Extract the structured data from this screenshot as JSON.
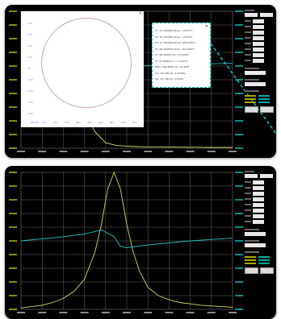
{
  "window_1": {
    "label": "Smith chart view with marker table",
    "marker_table": {
      "close_icon": "close-icon",
      "rows": [
        "F1: 97.100MHz   Zmin: 1.0077%",
        "F2: 97.200MHz   Zmin: 1.0079%",
        "F3: 97.300MHz   Rmax: 800.0Ohm",
        "F4: 99.100MHz   Rmin: 402.0Ohm",
        "Fo: 98.10MHz    Q1: 1.011kHz",
        "Fs: 97.60MHz    L1: 1.131mH",
        "BW3: 992.9MHz   C1: 16.40fF",
        "Qe: 107.8fs     C0: 1.0049fs",
        "Qp: 29.7dB      C2: 2.874fs"
      ]
    },
    "smith": {
      "close_icon": "close-icon",
      "y_ticks": [
        "0.8%",
        "0.6%",
        "0.4%",
        "0.2%",
        "0%",
        "-0.2%",
        "-0.4%",
        "-0.6%",
        "-0.8%"
      ],
      "x_ticks": [
        "98.9kHz",
        "97.4",
        "97.6",
        "97.8",
        "98.0",
        "98.2",
        "98.4",
        "98.6",
        "98.8",
        "99.0"
      ]
    }
  },
  "window_2": {
    "label": "Impedance magnitude and phase sweep"
  },
  "chart_data": [
    {
      "type": "line",
      "series": [
        {
          "color": "#d8d860",
          "x": [
            0,
            0.05,
            0.1,
            0.15,
            0.2,
            0.25,
            0.3,
            0.35,
            0.4,
            0.45,
            0.5,
            0.55,
            0.6,
            0.65,
            0.7,
            0.75,
            0.8,
            0.85,
            0.9,
            0.95,
            1.0
          ],
          "values": [
            0.98,
            0.9,
            0.82,
            0.72,
            0.6,
            0.45,
            0.28,
            0.12,
            0.04,
            0.02,
            0.015,
            0.012,
            0.01,
            0.01,
            0.008,
            0.008,
            0.007,
            0.007,
            0.006,
            0.006,
            0.006
          ]
        },
        {
          "color": "#24c0c0",
          "x": [
            0,
            1
          ],
          "values": [
            0.58,
            0.62
          ]
        }
      ]
    },
    {
      "type": "line",
      "series": [
        {
          "color": "#d8d860",
          "x": [
            0,
            0.05,
            0.1,
            0.15,
            0.2,
            0.25,
            0.3,
            0.35,
            0.38,
            0.41,
            0.44,
            0.47,
            0.5,
            0.53,
            0.56,
            0.6,
            0.65,
            0.7,
            0.75,
            0.8,
            0.85,
            0.9,
            0.95,
            1.0
          ],
          "values": [
            0.01,
            0.02,
            0.03,
            0.05,
            0.08,
            0.13,
            0.22,
            0.42,
            0.62,
            0.88,
            1.0,
            0.88,
            0.62,
            0.42,
            0.28,
            0.16,
            0.1,
            0.07,
            0.05,
            0.04,
            0.03,
            0.025,
            0.02,
            0.015
          ]
        },
        {
          "color": "#24c0c0",
          "x": [
            0,
            0.2,
            0.3,
            0.38,
            0.44,
            0.47,
            0.5,
            0.6,
            0.8,
            1.0
          ],
          "values": [
            0.5,
            0.53,
            0.55,
            0.58,
            0.53,
            0.46,
            0.45,
            0.47,
            0.5,
            0.52
          ]
        }
      ]
    }
  ]
}
